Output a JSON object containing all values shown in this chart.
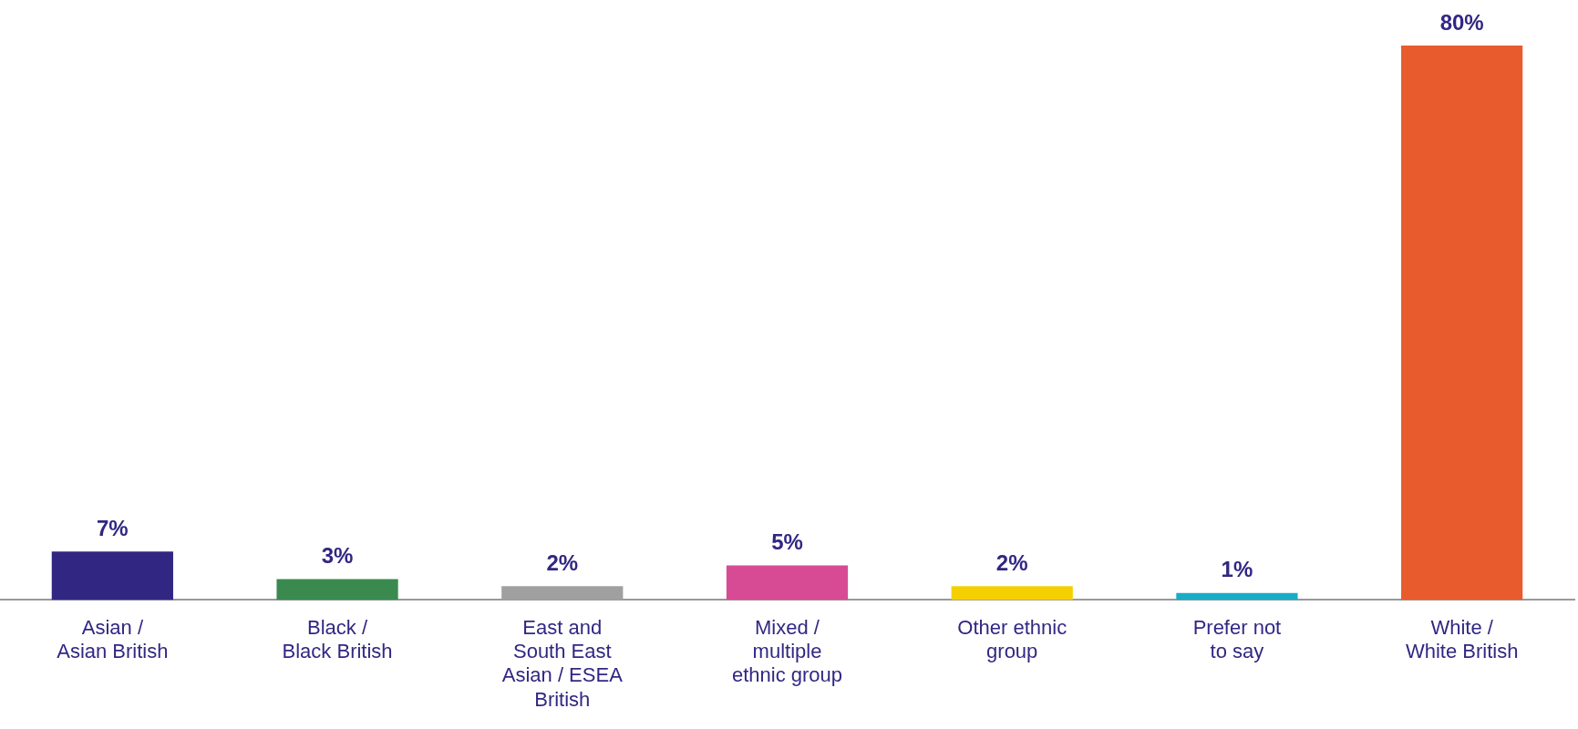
{
  "chart_data": {
    "type": "bar",
    "categories": [
      "Asian /\nAsian British",
      "Black /\nBlack British",
      "East and\nSouth East\nAsian / ESEA\nBritish",
      "Mixed /\nmultiple\nethnic group",
      "Other ethnic\ngroup",
      "Prefer not\nto say",
      "White /\nWhite British"
    ],
    "values": [
      7,
      3,
      2,
      5,
      2,
      1,
      80
    ],
    "colors": [
      "#312783",
      "#3a8a4f",
      "#a0a0a0",
      "#d64b93",
      "#f5d000",
      "#1aacc6",
      "#e85b2c"
    ],
    "value_labels": [
      "7%",
      "3%",
      "2%",
      "5%",
      "2%",
      "1%",
      "80%"
    ],
    "legend": false,
    "grid": false
  }
}
